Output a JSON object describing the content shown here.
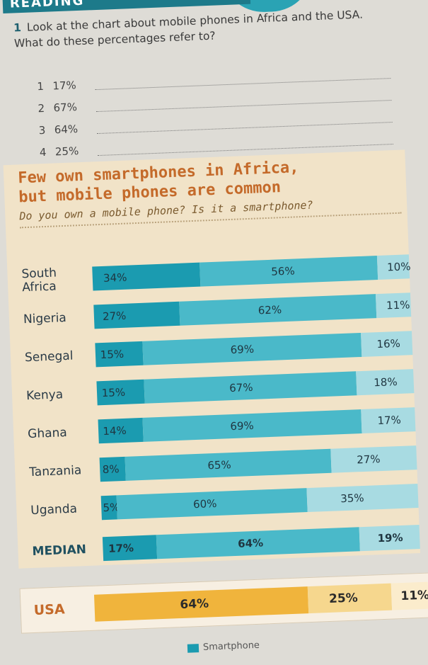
{
  "banner": {
    "text": "READING"
  },
  "exercise": {
    "number": "1",
    "text": "Look at the chart about mobile phones in Africa and the USA. What do these percentages refer to?",
    "items": [
      {
        "n": "1",
        "value": "17%"
      },
      {
        "n": "2",
        "value": "67%"
      },
      {
        "n": "3",
        "value": "64%"
      },
      {
        "n": "4",
        "value": "25%"
      }
    ]
  },
  "card": {
    "headline_1": "Few own smartphones in Africa,",
    "headline_2": "but mobile phones are common",
    "subhead": "Do you own a mobile phone? Is it a smartphone?"
  },
  "chart_data": {
    "type": "bar",
    "stacked": true,
    "title": "Few own smartphones in Africa, but mobile phones are common",
    "subtitle": "Do you own a mobile phone? Is it a smartphone?",
    "categories": [
      "South Africa",
      "Nigeria",
      "Senegal",
      "Kenya",
      "Ghana",
      "Tanzania",
      "Uganda",
      "MEDIAN",
      "USA"
    ],
    "series": [
      {
        "name": "Smartphone",
        "values": [
          34,
          27,
          15,
          15,
          14,
          8,
          5,
          17,
          64
        ]
      },
      {
        "values": [
          56,
          62,
          69,
          67,
          69,
          65,
          60,
          64,
          25
        ]
      },
      {
        "values": [
          10,
          11,
          16,
          18,
          17,
          27,
          35,
          19,
          11
        ]
      }
    ],
    "labels": [
      [
        "34%",
        "56%",
        "10%"
      ],
      [
        "27%",
        "62%",
        "11%"
      ],
      [
        "15%",
        "69%",
        "16%"
      ],
      [
        "15%",
        "67%",
        "18%"
      ],
      [
        "14%",
        "69%",
        "17%"
      ],
      [
        "8%",
        "65%",
        "27%"
      ],
      [
        "5%",
        "60%",
        "35%"
      ],
      [
        "17%",
        "64%",
        "19%"
      ],
      [
        "64%",
        "25%",
        "11%"
      ]
    ],
    "colors": [
      "#1b9bb0",
      "#4ab9c9",
      "#a8dbe2"
    ],
    "usa_colors": [
      "#f0b43c",
      "#f6d78e",
      "#fbeccc"
    ],
    "legend": [
      "Smartphone"
    ]
  }
}
